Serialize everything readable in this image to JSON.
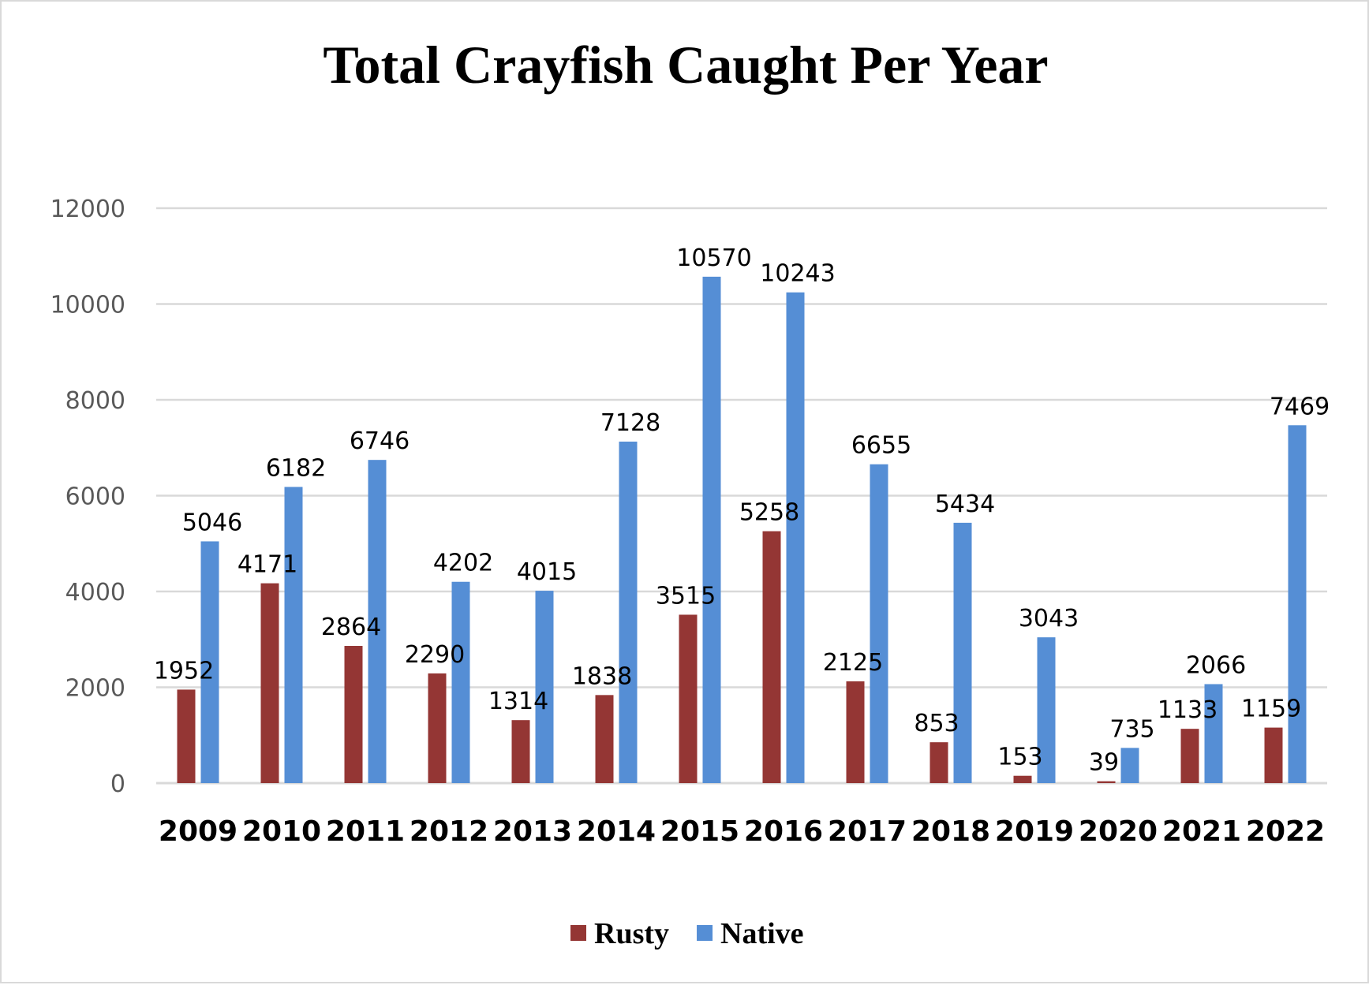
{
  "chart_data": {
    "type": "bar",
    "title": "Total Crayfish Caught Per Year",
    "xlabel": "",
    "ylabel": "",
    "ylim": [
      0,
      12000
    ],
    "yticks": [
      0,
      2000,
      4000,
      6000,
      8000,
      10000,
      12000
    ],
    "grid": true,
    "legend_placement": "bottom",
    "categories": [
      "2009",
      "2010",
      "2011",
      "2012",
      "2013",
      "2014",
      "2015",
      "2016",
      "2017",
      "2018",
      "2019",
      "2020",
      "2021",
      "2022"
    ],
    "series": [
      {
        "name": "Rusty",
        "color": "#943634",
        "values": [
          1952,
          4171,
          2864,
          2290,
          1314,
          1838,
          3515,
          5258,
          2125,
          853,
          153,
          39,
          1133,
          1159
        ]
      },
      {
        "name": "Native",
        "color": "#558ED5",
        "values": [
          5046,
          6182,
          6746,
          4202,
          4015,
          7128,
          10570,
          10243,
          6655,
          5434,
          3043,
          735,
          2066,
          7469
        ]
      }
    ]
  }
}
